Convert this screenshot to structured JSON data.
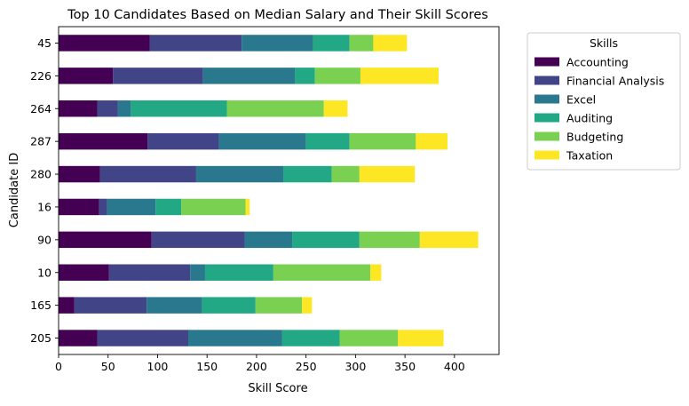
{
  "chart_data": {
    "type": "bar",
    "orientation": "horizontal",
    "stacked": true,
    "title": "Top 10 Candidates Based on Median Salary and Their Skill Scores",
    "xlabel": "Skill Score",
    "ylabel": "Candidate ID",
    "xlim": [
      0,
      445
    ],
    "xticks": [
      0,
      50,
      100,
      150,
      200,
      250,
      300,
      350,
      400
    ],
    "grid": false,
    "legend": {
      "title": "Skills",
      "placement": "outside-upper-right"
    },
    "categories": [
      "205",
      "165",
      "10",
      "90",
      "16",
      "280",
      "287",
      "264",
      "226",
      "45"
    ],
    "series": [
      {
        "name": "Accounting",
        "color": "#440154",
        "values": [
          39,
          16,
          51,
          94,
          41,
          42,
          90,
          39,
          55,
          92
        ]
      },
      {
        "name": "Financial Analysis",
        "color": "#414487",
        "values": [
          92,
          73,
          82,
          94,
          8,
          97,
          72,
          21,
          91,
          93
        ]
      },
      {
        "name": "Excel",
        "color": "#2a788e",
        "values": [
          95,
          56,
          15,
          48,
          49,
          88,
          88,
          13,
          93,
          72
        ]
      },
      {
        "name": "Auditing",
        "color": "#22a884",
        "values": [
          58,
          54,
          69,
          68,
          26,
          49,
          44,
          97,
          20,
          37
        ]
      },
      {
        "name": "Budgeting",
        "color": "#7ad151",
        "values": [
          59,
          47,
          98,
          61,
          65,
          28,
          67,
          98,
          46,
          24
        ]
      },
      {
        "name": "Taxation",
        "color": "#fde725",
        "values": [
          46,
          10,
          11,
          59,
          4,
          56,
          32,
          24,
          79,
          34
        ]
      }
    ]
  }
}
